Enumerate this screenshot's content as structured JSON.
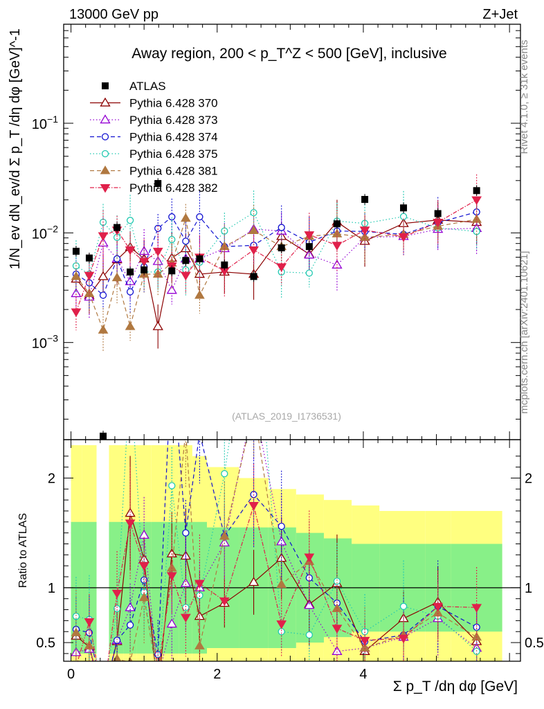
{
  "chart_data": {
    "type": "line",
    "header_left": "13000 GeV pp",
    "header_right": "Z+Jet",
    "title": "Away region, 200 < p_T^Z < 500 [GeV], inclusive",
    "ylabel": "1/N_ev dN_ev/d Σ p_T /dη dφ [GeV]^-1",
    "ratio_ylabel": "Ratio to ATLAS",
    "xlabel": "Σ p_T /dη dφ [GeV]",
    "watermark": "(ATLAS_2019_I1736531)",
    "side_text_1": "Rivet 4.1.0, ≥ 31k events",
    "side_text_2": "mcplots.cern.ch [arXiv:2401.10621]",
    "x_range": [
      -0.1,
      6.15
    ],
    "y_range_log": [
      0.00013,
      0.8
    ],
    "ratio_range": [
      0.33,
      2.35
    ],
    "x_ticks": [
      0,
      2,
      4
    ],
    "y_ticks_major": [
      "10^-3",
      "10^-2",
      "10^-1"
    ],
    "ratio_ticks": [
      0.5,
      1,
      2
    ],
    "x": [
      0.07,
      0.25,
      0.44,
      0.63,
      0.81,
      1.0,
      1.19,
      1.38,
      1.57,
      1.76,
      2.1,
      2.5,
      2.88,
      3.26,
      3.64,
      4.02,
      4.55,
      5.02,
      5.55
    ],
    "bin_edges": [
      0.0,
      0.15,
      0.35,
      0.52,
      0.72,
      0.9,
      1.1,
      1.28,
      1.48,
      1.66,
      1.86,
      2.3,
      2.7,
      3.08,
      3.46,
      3.84,
      4.22,
      4.85,
      5.2,
      5.9
    ],
    "atlas": {
      "name": "ATLAS",
      "values": [
        0.0068,
        0.0059,
        0.00014,
        0.0112,
        0.0044,
        0.0046,
        0.0282,
        0.0045,
        0.0056,
        0.0058,
        0.0051,
        0.004,
        0.0073,
        0.0075,
        0.0121,
        0.0202,
        0.0169,
        0.015,
        0.0243
      ],
      "band_inner": [
        0.6,
        0.6,
        0.0,
        0.6,
        0.6,
        0.6,
        0.6,
        0.6,
        0.6,
        0.6,
        0.55,
        0.55,
        0.55,
        0.5,
        0.45,
        0.4,
        0.4,
        0.4,
        0.4
      ],
      "band_outer": [
        1.3,
        1.3,
        0.0,
        1.3,
        1.3,
        1.3,
        1.3,
        1.3,
        1.3,
        1.2,
        1.1,
        1.0,
        0.9,
        0.85,
        0.8,
        0.75,
        0.7,
        0.7,
        0.7
      ]
    },
    "series": [
      {
        "name": "Pythia 6.428 370",
        "color": "#8b0000",
        "dash": "",
        "marker": "tri-up-open",
        "values": [
          0.0038,
          0.0027,
          0.004,
          0.0057,
          0.0074,
          0.0058,
          0.0014,
          0.0059,
          0.0072,
          0.0042,
          0.0044,
          0.0042,
          0.0093,
          0.0064,
          0.0126,
          0.0084,
          0.0122,
          0.0131,
          0.0125
        ],
        "ratio": [
          0.56,
          0.46,
          0.0,
          0.51,
          1.68,
          1.26,
          0.05,
          1.31,
          1.29,
          0.74,
          0.86,
          1.05,
          1.27,
          0.85,
          1.04,
          0.42,
          0.72,
          0.87,
          0.51
        ]
      },
      {
        "name": "Pythia 6.428 373",
        "color": "#9400d3",
        "dash": "1.5,3",
        "marker": "tri-up-open",
        "values": [
          0.0028,
          0.0026,
          0.0081,
          0.0058,
          0.0036,
          0.0068,
          0.0055,
          0.003,
          0.0058,
          0.0058,
          0.0072,
          0.0108,
          0.0104,
          0.0063,
          0.0051,
          0.0091,
          0.0093,
          0.0108,
          0.011
        ],
        "ratio": [
          0.41,
          0.44,
          0.0,
          0.52,
          0.82,
          1.48,
          0.19,
          0.67,
          1.04,
          1.0,
          1.41,
          2.7,
          1.42,
          0.84,
          0.42,
          0.45,
          0.55,
          0.72,
          0.45
        ]
      },
      {
        "name": "Pythia 6.428 374",
        "color": "#1010d0",
        "dash": "6,4",
        "marker": "circle-open",
        "values": [
          0.0042,
          0.0035,
          0.0027,
          0.0058,
          0.0029,
          0.0049,
          0.011,
          0.014,
          0.0084,
          0.014,
          0.0075,
          0.0077,
          0.0112,
          0.0082,
          0.0104,
          0.0103,
          0.0097,
          0.0124,
          0.0155
        ],
        "ratio": [
          0.62,
          0.59,
          0.0,
          0.52,
          0.66,
          1.07,
          0.39,
          3.1,
          1.5,
          2.41,
          1.47,
          1.85,
          1.56,
          1.09,
          0.86,
          0.51,
          0.57,
          0.83,
          0.64
        ]
      },
      {
        "name": "Pythia 6.428 375",
        "color": "#20c8b0",
        "dash": "1.5,3",
        "marker": "circle-open",
        "values": [
          0.005,
          0.0042,
          0.0125,
          0.0091,
          0.013,
          0.0044,
          0.0044,
          0.0087,
          0.0046,
          0.0054,
          0.0104,
          0.0153,
          0.0044,
          0.0043,
          0.0128,
          0.0122,
          0.0141,
          0.0111,
          0.0103
        ],
        "ratio": [
          0.74,
          0.71,
          0.0,
          0.81,
          2.95,
          0.96,
          0.16,
          1.93,
          0.82,
          0.93,
          2.04,
          3.8,
          0.6,
          0.57,
          1.06,
          0.6,
          0.83,
          0.74,
          0.42
        ]
      },
      {
        "name": "Pythia 6.428 381",
        "color": "#b07840",
        "dash": "6,4",
        "marker": "tri-up",
        "values": [
          0.004,
          0.0028,
          0.0013,
          0.0039,
          0.0014,
          0.0042,
          0.0042,
          0.0053,
          0.0136,
          0.0027,
          0.0075,
          0.0105,
          0.0075,
          0.0093,
          0.0098,
          0.0091,
          0.0097,
          0.0115,
          0.0133
        ],
        "ratio": [
          0.59,
          0.47,
          0.0,
          0.35,
          0.32,
          0.91,
          0.15,
          1.18,
          2.43,
          0.47,
          1.47,
          2.63,
          1.03,
          1.24,
          0.81,
          0.45,
          0.57,
          0.77,
          0.55
        ]
      },
      {
        "name": "Pythia 6.428 382",
        "color": "#e0204a",
        "dash": "6,2,1.5,2",
        "marker": "tri-down",
        "values": [
          0.0019,
          0.0041,
          0.0094,
          0.0106,
          0.007,
          0.0055,
          0.0068,
          0.005,
          0.0041,
          0.006,
          0.0045,
          0.007,
          0.0049,
          0.0096,
          0.0077,
          0.0106,
          0.0092,
          0.0125,
          0.02
        ],
        "ratio": [
          0.28,
          0.69,
          0.0,
          0.95,
          1.59,
          1.2,
          0.24,
          1.11,
          0.73,
          1.04,
          0.88,
          1.75,
          0.67,
          1.28,
          0.63,
          0.52,
          0.54,
          0.83,
          0.82
        ]
      }
    ]
  }
}
